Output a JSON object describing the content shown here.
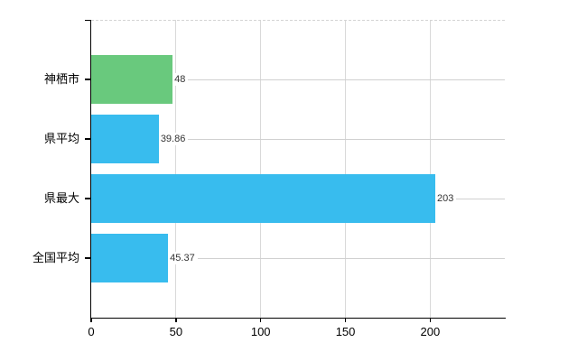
{
  "chart_data": {
    "type": "bar",
    "orientation": "horizontal",
    "title": "",
    "xlabel": "",
    "ylabel": "",
    "categories": [
      "神栖市",
      "県平均",
      "県最大",
      "全国平均"
    ],
    "values": [
      48,
      39.86,
      203,
      45.37
    ],
    "value_labels": [
      "48",
      "39.86",
      "203",
      "45.37"
    ],
    "bar_colors": [
      "#69c97d",
      "#38bcee",
      "#38bcee",
      "#38bcee"
    ],
    "x_ticks": [
      0,
      50,
      100,
      150,
      200
    ],
    "x_tick_labels": [
      "0",
      "50",
      "100",
      "150",
      "200"
    ],
    "xlim": [
      0,
      244
    ],
    "grid": true,
    "legend_position": "none"
  },
  "colors": {
    "bar_default": "#38bcee",
    "bar_highlight": "#69c97d",
    "axis_line": "#000000",
    "gridline": "#d4d4d4",
    "background": "#ffffff",
    "category_text": "#000000",
    "value_text": "#333333"
  }
}
